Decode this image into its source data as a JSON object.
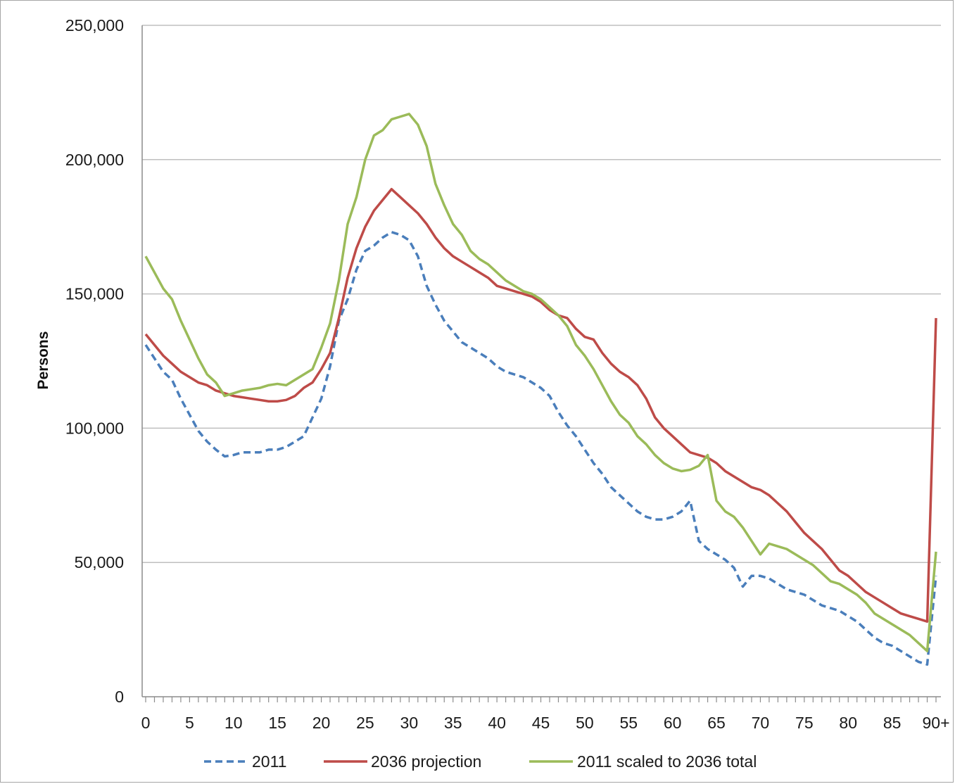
{
  "chart_data": {
    "type": "line",
    "title": "",
    "xlabel": "",
    "ylabel": "Persons",
    "ylim": [
      0,
      250000
    ],
    "yticks": [
      0,
      50000,
      100000,
      150000,
      200000,
      250000
    ],
    "ytick_labels": [
      "0",
      "50,000",
      "100,000",
      "150,000",
      "200,000",
      "250,000"
    ],
    "x": [
      "0",
      "1",
      "2",
      "3",
      "4",
      "5",
      "6",
      "7",
      "8",
      "9",
      "10",
      "11",
      "12",
      "13",
      "14",
      "15",
      "16",
      "17",
      "18",
      "19",
      "20",
      "21",
      "22",
      "23",
      "24",
      "25",
      "26",
      "27",
      "28",
      "29",
      "30",
      "31",
      "32",
      "33",
      "34",
      "35",
      "36",
      "37",
      "38",
      "39",
      "40",
      "41",
      "42",
      "43",
      "44",
      "45",
      "46",
      "47",
      "48",
      "49",
      "50",
      "51",
      "52",
      "53",
      "54",
      "55",
      "56",
      "57",
      "58",
      "59",
      "60",
      "61",
      "62",
      "63",
      "64",
      "65",
      "66",
      "67",
      "68",
      "69",
      "70",
      "71",
      "72",
      "73",
      "74",
      "75",
      "76",
      "77",
      "78",
      "79",
      "80",
      "81",
      "82",
      "83",
      "84",
      "85",
      "86",
      "87",
      "88",
      "89",
      "90+"
    ],
    "xtick_labels": [
      "0",
      "5",
      "10",
      "15",
      "20",
      "25",
      "30",
      "35",
      "40",
      "45",
      "50",
      "55",
      "60",
      "65",
      "70",
      "75",
      "80",
      "85",
      "90+"
    ],
    "grid": "horizontal",
    "legend_position": "bottom",
    "series": [
      {
        "name": "2011",
        "color": "#4a7ebb",
        "style": "dashed",
        "values": [
          131000,
          126000,
          121000,
          118000,
          111000,
          105000,
          99000,
          95000,
          92000,
          89500,
          90000,
          91000,
          91000,
          91000,
          92000,
          92000,
          93000,
          95000,
          97000,
          104000,
          111000,
          123000,
          140000,
          148000,
          159000,
          166000,
          168000,
          171000,
          173000,
          172000,
          170000,
          164000,
          153000,
          146000,
          140000,
          136000,
          132000,
          130000,
          128000,
          126000,
          123000,
          121000,
          120000,
          119000,
          117000,
          115000,
          112000,
          106000,
          101000,
          97000,
          92000,
          87000,
          83000,
          78000,
          75000,
          72000,
          69000,
          67000,
          66000,
          66000,
          67000,
          69000,
          73000,
          58000,
          55000,
          53000,
          51000,
          48000,
          41000,
          45000,
          45000,
          44000,
          42000,
          40000,
          39000,
          38000,
          36000,
          34000,
          33000,
          32000,
          30000,
          28000,
          25000,
          22000,
          20000,
          19000,
          17000,
          15000,
          13000,
          12000,
          45000
        ]
      },
      {
        "name": "2036 projection",
        "color": "#be4b48",
        "style": "solid",
        "values": [
          135000,
          131000,
          127000,
          124000,
          121000,
          119000,
          117000,
          116000,
          114000,
          113000,
          112000,
          111500,
          111000,
          110500,
          110000,
          110000,
          110500,
          112000,
          115000,
          117000,
          122000,
          128000,
          141000,
          156000,
          167000,
          175000,
          181000,
          185000,
          189000,
          186000,
          183000,
          180000,
          176000,
          171000,
          167000,
          164000,
          162000,
          160000,
          158000,
          156000,
          153000,
          152000,
          151000,
          150000,
          149000,
          147000,
          144000,
          142000,
          141000,
          137000,
          134000,
          133000,
          128000,
          124000,
          121000,
          119000,
          116000,
          111000,
          104000,
          100000,
          97000,
          94000,
          91000,
          90000,
          89000,
          87000,
          84000,
          82000,
          80000,
          78000,
          77000,
          75000,
          72000,
          69000,
          65000,
          61000,
          58000,
          55000,
          51000,
          47000,
          45000,
          42000,
          39000,
          37000,
          35000,
          33000,
          31000,
          30000,
          29000,
          28000,
          141000
        ]
      },
      {
        "name": "2011 scaled to 2036 total",
        "color": "#9bbb59",
        "style": "solid",
        "values": [
          164000,
          158000,
          152000,
          148000,
          140000,
          133000,
          126000,
          120000,
          117000,
          112000,
          113000,
          114000,
          114500,
          115000,
          116000,
          116500,
          116000,
          118000,
          120000,
          122000,
          130000,
          139000,
          155000,
          176000,
          186000,
          200000,
          209000,
          211000,
          215000,
          216000,
          217000,
          213000,
          205000,
          191000,
          183000,
          176000,
          172000,
          166000,
          163000,
          161000,
          158000,
          155000,
          153000,
          151000,
          150000,
          148000,
          145000,
          142000,
          138000,
          131000,
          127000,
          122000,
          116000,
          110000,
          105000,
          102000,
          97000,
          94000,
          90000,
          87000,
          85000,
          84000,
          84500,
          86000,
          90000,
          73000,
          69000,
          67000,
          63000,
          58000,
          53000,
          57000,
          56000,
          55000,
          53000,
          51000,
          49000,
          46000,
          43000,
          42000,
          40000,
          38000,
          35000,
          31000,
          29000,
          27000,
          25000,
          23000,
          20000,
          17000,
          54000
        ]
      }
    ]
  }
}
